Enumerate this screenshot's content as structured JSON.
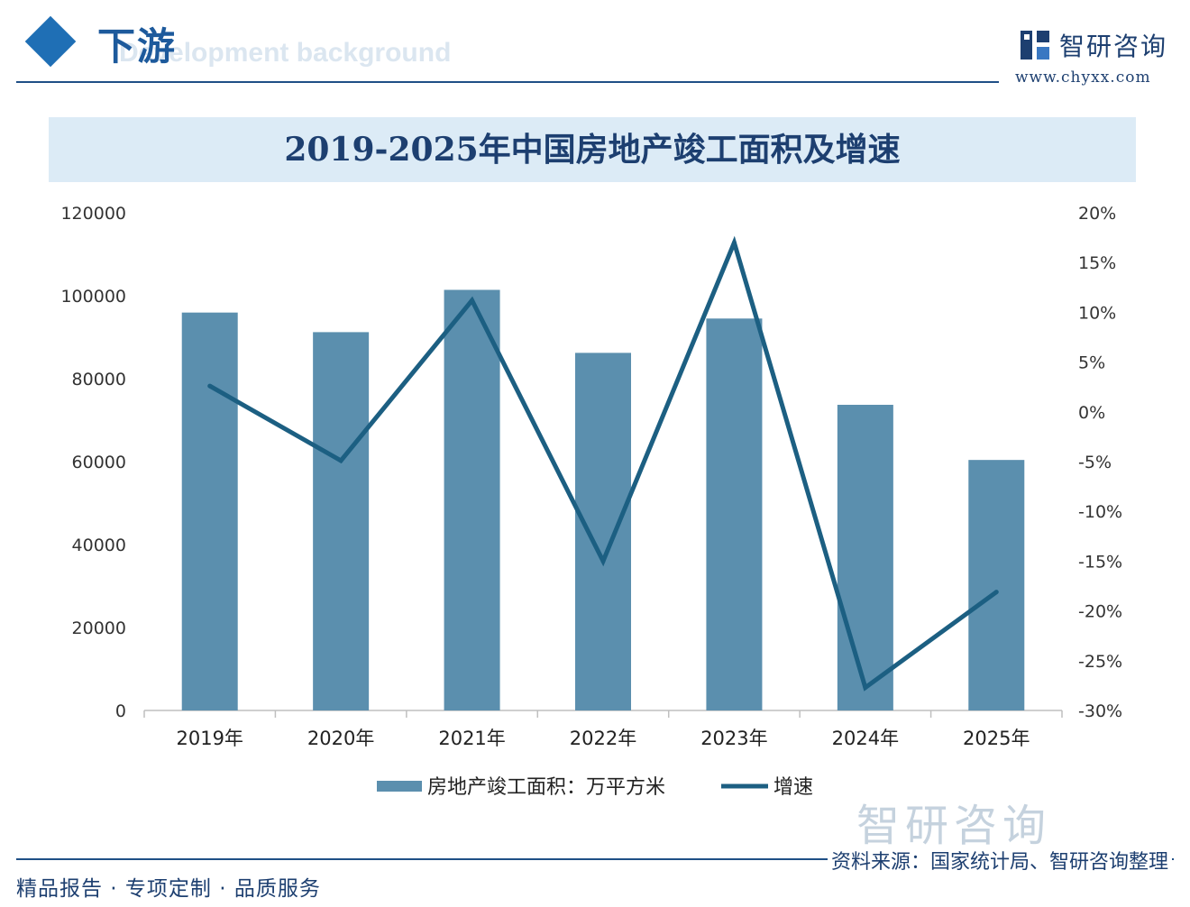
{
  "header": {
    "section_title": "下游",
    "section_subtitle": "Development background",
    "brand_name": "智研咨询",
    "brand_url": "www.chyxx.com"
  },
  "chart_data": {
    "type": "bar",
    "title": "2019-2025年中国房地产竣工面积及增速",
    "categories": [
      "2019年",
      "2020年",
      "2021年",
      "2022年",
      "2023年",
      "2024年",
      "2025年"
    ],
    "series": [
      {
        "name": "房地产竣工面积：万平方米",
        "type": "bar",
        "axis": "left",
        "color": "#5b8fae",
        "values": [
          95942,
          91218,
          101412,
          86222,
          94500,
          73700,
          60400
        ]
      },
      {
        "name": "增速",
        "type": "line",
        "axis": "right",
        "color": "#1c5f82",
        "values": [
          2.6,
          -4.9,
          11.2,
          -15.0,
          17.0,
          -27.7,
          -18.1
        ]
      }
    ],
    "ylim_left": [
      0,
      120000
    ],
    "yticks_left": [
      "0",
      "20000",
      "40000",
      "60000",
      "80000",
      "100000",
      "120000"
    ],
    "ylim_right": [
      -30,
      20
    ],
    "yticks_right": [
      "-30%",
      "-25%",
      "-20%",
      "-15%",
      "-10%",
      "-5%",
      "0%",
      "5%",
      "10%",
      "15%",
      "20%"
    ],
    "legend_position": "bottom",
    "grid": false
  },
  "footer": {
    "source": "资料来源：国家统计局、智研咨询整理",
    "tagline": "精品报告 · 专项定制 · 品质服务",
    "watermark": "智研咨询"
  }
}
